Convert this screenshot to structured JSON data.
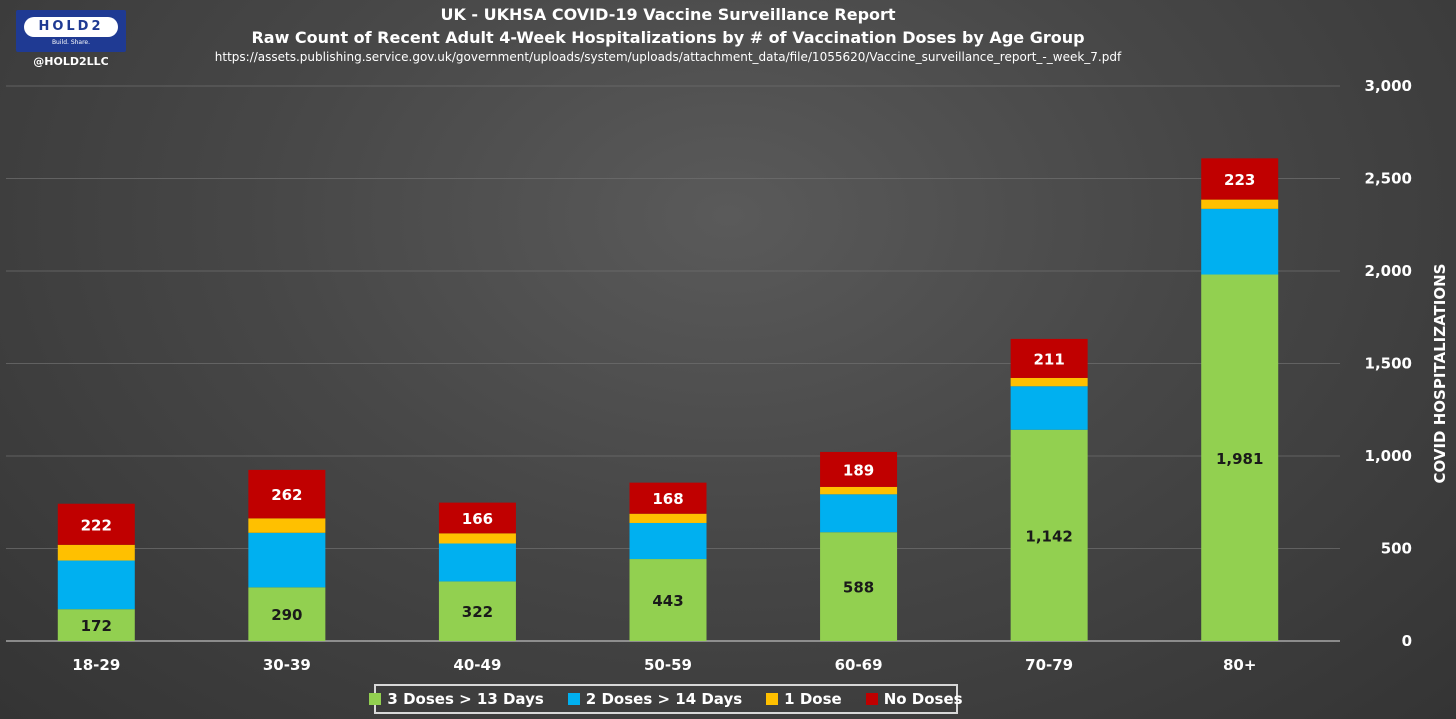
{
  "header": {
    "title_line1": "UK - UKHSA COVID-19 Vaccine Surveillance Report",
    "title_line2": "Raw Count of Recent Adult 4-Week Hospitalizations by # of Vaccination Doses by Age Group",
    "source_url": "https://assets.publishing.service.gov.uk/government/uploads/system/uploads/attachment_data/file/1055620/Vaccine_surveillance_report_-_week_7.pdf"
  },
  "logo": {
    "name": "HOLD2",
    "tagline": "Build. Share.",
    "handle": "@HOLD2LLC"
  },
  "chart_data": {
    "type": "bar",
    "stacked": true,
    "title": "Raw Count of Recent Adult 4-Week Hospitalizations by # of Vaccination Doses by Age Group",
    "xlabel": "",
    "ylabel": "COVID HOSPITALIZATIONS",
    "ylim": [
      0,
      3000
    ],
    "yticks": [
      0,
      500,
      1000,
      1500,
      2000,
      2500,
      3000
    ],
    "ytick_labels": [
      "0",
      "500",
      "1,000",
      "1,500",
      "2,000",
      "2,500",
      "3,000"
    ],
    "y_axis_side": "right",
    "grid": true,
    "legend_position": "bottom",
    "categories": [
      "18-29",
      "30-39",
      "40-49",
      "50-59",
      "60-69",
      "70-79",
      "80+"
    ],
    "series": [
      {
        "name": "3 Doses > 13 Days",
        "color": "#92d050",
        "values": [
          172,
          290,
          322,
          443,
          588,
          1142,
          1981
        ],
        "labels": [
          "172",
          "290",
          "322",
          "443",
          "588",
          "1,142",
          "1,981"
        ]
      },
      {
        "name": "2 Doses > 14 Days",
        "color": "#00b0f0",
        "values": [
          263,
          295,
          205,
          195,
          205,
          235,
          355
        ]
      },
      {
        "name": "1 Dose",
        "color": "#ffc000",
        "values": [
          85,
          78,
          55,
          50,
          40,
          45,
          50
        ]
      },
      {
        "name": "No Doses",
        "color": "#c00000",
        "values": [
          222,
          262,
          166,
          168,
          189,
          211,
          223
        ],
        "labels": [
          "222",
          "262",
          "166",
          "168",
          "189",
          "211",
          "223"
        ]
      }
    ]
  }
}
